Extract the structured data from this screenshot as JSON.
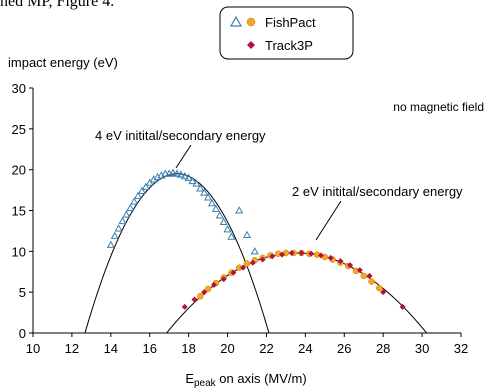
{
  "page_text": "ned MP, Figure 4.",
  "chart_data": {
    "type": "scatter",
    "title": "",
    "xlabel_main": "E",
    "xlabel_sub": "peak",
    "xlabel_rest": " on axis (MV/m)",
    "ylabel": "impact energy (eV)",
    "xlim": [
      10,
      32
    ],
    "ylim": [
      0,
      30
    ],
    "xticks": [
      "10",
      "12",
      "14",
      "16",
      "18",
      "20",
      "22",
      "24",
      "26",
      "28",
      "30",
      "32"
    ],
    "yticks": [
      "0",
      "5",
      "10",
      "15",
      "20",
      "25",
      "30"
    ],
    "grid": false,
    "legend_placement": "top-center",
    "legend": [
      {
        "name": "FishPact",
        "markers": [
          "open-triangle",
          "orange-circle"
        ]
      },
      {
        "name": "Track3P",
        "markers": [
          "red-diamond"
        ]
      }
    ],
    "annotations": {
      "no_field": "no magnetic field",
      "curve_4ev": "4 eV initital/secondary energy",
      "curve_2ev": "2 eV initital/secondary energy"
    },
    "colors": {
      "triangle": "#3a7fb0",
      "circle": "#f5a623",
      "diamond": "#b5123a",
      "curve": "#000000"
    },
    "curves": [
      {
        "name": "4ev-fit",
        "peak_x": 17.4,
        "peak_y": 19.5,
        "k": 0.8727
      },
      {
        "name": "2ev-fit",
        "peak_x": 23.55,
        "peak_y": 9.8,
        "k": 0.2195
      }
    ],
    "series": [
      {
        "name": "FishPact triangles (4 eV)",
        "marker": "open-triangle",
        "x": [
          14.0,
          14.2,
          14.4,
          14.6,
          14.8,
          15.0,
          15.2,
          15.4,
          15.6,
          15.8,
          16.0,
          16.2,
          16.4,
          16.6,
          16.8,
          17.0,
          17.2,
          17.4,
          17.6,
          17.8,
          18.0,
          18.2,
          18.4,
          18.6,
          18.8,
          19.0,
          19.2,
          19.4,
          19.6,
          19.8,
          20.0,
          20.2,
          20.6,
          21.0,
          21.4
        ],
        "y": [
          10.8,
          11.9,
          12.8,
          13.7,
          14.5,
          15.3,
          16.1,
          16.8,
          17.4,
          17.9,
          18.4,
          18.8,
          19.1,
          19.3,
          19.5,
          19.5,
          19.6,
          19.5,
          19.4,
          19.2,
          19.0,
          18.6,
          18.3,
          17.7,
          17.2,
          16.6,
          15.9,
          15.2,
          14.4,
          13.6,
          12.7,
          11.8,
          15.0,
          12.0,
          10.0
        ]
      },
      {
        "name": "FishPact circles (2 eV)",
        "marker": "orange-circle",
        "x": [
          18.6,
          19.0,
          19.4,
          19.8,
          20.2,
          20.6,
          21.0,
          21.4,
          21.8,
          22.2,
          22.6,
          23.0,
          23.4,
          23.8,
          24.2,
          24.6,
          25.0,
          25.4,
          25.8,
          26.2,
          26.6,
          27.0,
          27.4,
          27.8
        ],
        "y": [
          4.5,
          5.4,
          6.1,
          6.8,
          7.4,
          8.0,
          8.5,
          8.9,
          9.2,
          9.5,
          9.7,
          9.8,
          9.8,
          9.8,
          9.7,
          9.6,
          9.3,
          9.0,
          8.6,
          8.2,
          7.6,
          7.0,
          6.3,
          5.5
        ]
      },
      {
        "name": "Track3P diamonds",
        "marker": "red-diamond",
        "x": [
          17.8,
          18.3,
          18.8,
          19.3,
          19.8,
          20.3,
          20.8,
          21.3,
          21.8,
          22.3,
          22.8,
          23.3,
          23.8,
          24.3,
          24.8,
          25.3,
          25.8,
          26.3,
          26.8,
          27.3,
          28.0,
          29.0
        ],
        "y": [
          3.2,
          4.1,
          5.0,
          5.9,
          6.6,
          7.4,
          8.0,
          8.6,
          9.0,
          9.4,
          9.6,
          9.8,
          9.8,
          9.7,
          9.5,
          9.2,
          8.8,
          8.3,
          7.7,
          7.0,
          5.0,
          3.2
        ]
      }
    ]
  }
}
